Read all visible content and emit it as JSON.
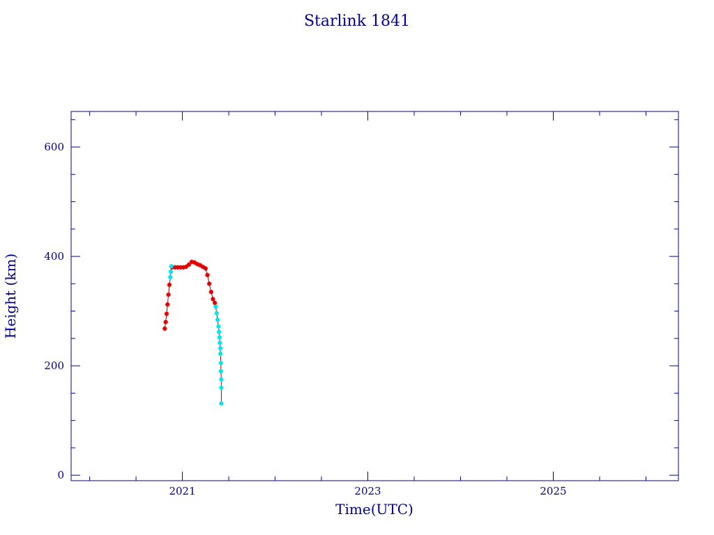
{
  "chart_data": {
    "type": "scatter",
    "title": "Starlink 1841",
    "xlabel": "Time(UTC)",
    "ylabel": "Height (km)",
    "xlim": [
      2019.8,
      2026.35
    ],
    "ylim": [
      -10,
      665
    ],
    "x_ticks": [
      2021,
      2023,
      2025
    ],
    "y_ticks": [
      0,
      200,
      400,
      600
    ],
    "colors": {
      "axis": "#00008b",
      "series_a": "#e00000",
      "series_b": "#00e5ee",
      "connector": "#a00000"
    },
    "series": [
      {
        "color": "#e00000",
        "points": [
          [
            2020.81,
            268
          ],
          [
            2020.82,
            280
          ],
          [
            2020.83,
            295
          ],
          [
            2020.84,
            312
          ],
          [
            2020.85,
            330
          ],
          [
            2020.86,
            348
          ],
          [
            2020.89,
            380
          ],
          [
            2020.92,
            380
          ],
          [
            2020.95,
            380
          ],
          [
            2020.98,
            380
          ],
          [
            2021.01,
            380
          ],
          [
            2021.04,
            381
          ],
          [
            2021.07,
            385
          ],
          [
            2021.1,
            390
          ],
          [
            2021.13,
            389
          ],
          [
            2021.16,
            386
          ],
          [
            2021.19,
            384
          ],
          [
            2021.22,
            381
          ],
          [
            2021.25,
            378
          ],
          [
            2021.27,
            366
          ],
          [
            2021.29,
            350
          ],
          [
            2021.31,
            335
          ],
          [
            2021.33,
            322
          ],
          [
            2021.35,
            315
          ]
        ]
      },
      {
        "color": "#00e5ee",
        "points": [
          [
            2020.87,
            362
          ],
          [
            2020.875,
            372
          ],
          [
            2020.88,
            382
          ],
          [
            2021.36,
            308
          ],
          [
            2021.37,
            296
          ],
          [
            2021.38,
            284
          ],
          [
            2021.39,
            272
          ],
          [
            2021.395,
            262
          ],
          [
            2021.4,
            252
          ],
          [
            2021.405,
            242
          ],
          [
            2021.41,
            232
          ],
          [
            2021.41,
            222
          ],
          [
            2021.415,
            205
          ],
          [
            2021.415,
            190
          ],
          [
            2021.42,
            175
          ],
          [
            2021.42,
            160
          ],
          [
            2021.42,
            131
          ]
        ]
      }
    ]
  }
}
